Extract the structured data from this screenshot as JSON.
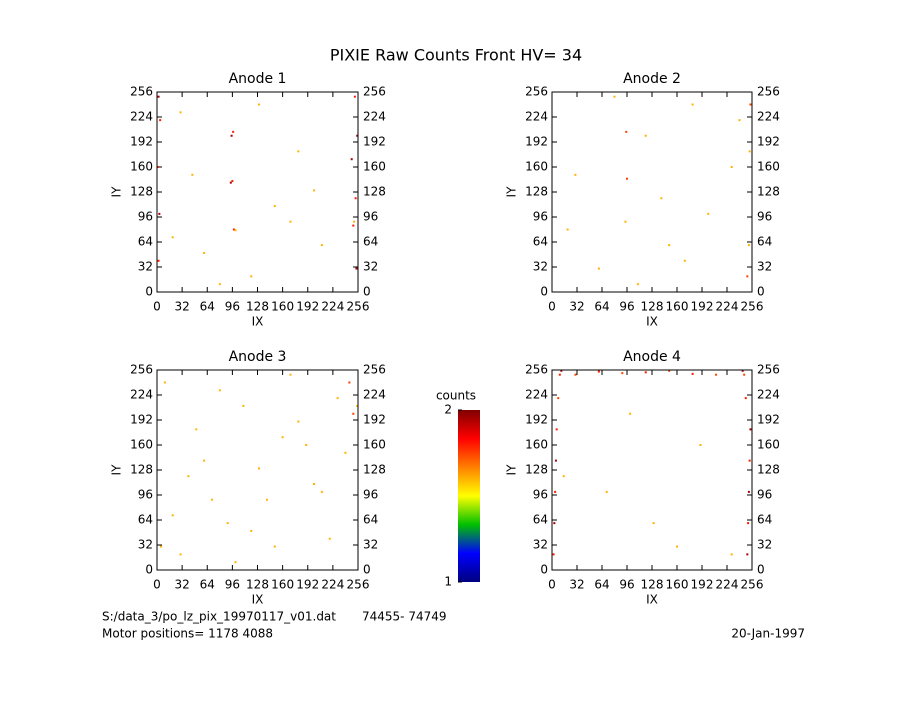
{
  "title": "PIXIE Raw Counts Front HV= 34",
  "colorbar": {
    "label": "counts",
    "clim": [
      1,
      2
    ],
    "ticks": [
      1,
      2
    ],
    "colors": [
      "#000080",
      "#0000ff",
      "#00c000",
      "#ffff00",
      "#ff8000",
      "#ff0000",
      "#800000"
    ]
  },
  "footer": {
    "file": "S:/data_3/po_lz_pix_19970117_v01.dat",
    "range": "74455- 74749",
    "motor": "Motor positions= 1178 4088",
    "date": "20-Jan-1997"
  },
  "chart_data": [
    {
      "type": "scatter",
      "title": "Anode 1",
      "x_label": "IX",
      "y_label": "IY",
      "xlim": [
        0,
        256
      ],
      "ylim": [
        0,
        256
      ],
      "xticks": [
        0,
        32,
        64,
        96,
        128,
        160,
        192,
        224,
        256
      ],
      "yticks": [
        0,
        32,
        64,
        96,
        128,
        160,
        192,
        224,
        256
      ],
      "x": [
        2,
        3,
        1,
        4,
        2,
        254,
        253,
        255,
        252,
        95,
        97,
        94,
        96,
        98,
        100,
        248,
        250,
        251,
        30,
        60,
        120,
        150,
        180,
        210,
        45,
        130,
        200,
        170,
        80,
        20
      ],
      "y": [
        40,
        100,
        160,
        220,
        250,
        30,
        120,
        200,
        250,
        200,
        205,
        140,
        142,
        80,
        79,
        170,
        85,
        90,
        230,
        50,
        20,
        110,
        180,
        60,
        150,
        240,
        130,
        90,
        10,
        70
      ],
      "values": [
        1.8,
        1.95,
        1.8,
        1.8,
        1.95,
        1.95,
        1.8,
        1.95,
        1.8,
        1.95,
        1.8,
        1.95,
        1.8,
        1.8,
        1.6,
        1.95,
        1.8,
        1.6,
        1.6,
        1.6,
        1.6,
        1.6,
        1.6,
        1.6,
        1.6,
        1.6,
        1.6,
        1.6,
        1.6,
        1.6
      ]
    },
    {
      "type": "scatter",
      "title": "Anode 2",
      "x_label": "IX",
      "y_label": "IY",
      "xlim": [
        0,
        256
      ],
      "ylim": [
        0,
        256
      ],
      "xticks": [
        0,
        32,
        64,
        96,
        128,
        160,
        192,
        224,
        256
      ],
      "yticks": [
        0,
        32,
        64,
        96,
        128,
        160,
        192,
        224,
        256
      ],
      "x": [
        95,
        96,
        94,
        250,
        252,
        253,
        254,
        60,
        120,
        200,
        30,
        150,
        180,
        230,
        80,
        110,
        140,
        20,
        170,
        240
      ],
      "y": [
        205,
        145,
        90,
        20,
        60,
        180,
        240,
        30,
        200,
        100,
        150,
        60,
        240,
        160,
        250,
        10,
        120,
        80,
        40,
        220
      ],
      "values": [
        1.75,
        1.75,
        1.6,
        1.75,
        1.6,
        1.6,
        1.75,
        1.6,
        1.6,
        1.6,
        1.6,
        1.6,
        1.6,
        1.6,
        1.6,
        1.6,
        1.6,
        1.6,
        1.6,
        1.6
      ]
    },
    {
      "type": "scatter",
      "title": "Anode 3",
      "x_label": "IX",
      "y_label": "IY",
      "xlim": [
        0,
        256
      ],
      "ylim": [
        0,
        256
      ],
      "xticks": [
        0,
        32,
        64,
        96,
        128,
        160,
        192,
        224,
        256
      ],
      "yticks": [
        0,
        32,
        64,
        96,
        128,
        160,
        192,
        224,
        256
      ],
      "x": [
        10,
        30,
        50,
        70,
        90,
        110,
        130,
        150,
        170,
        190,
        210,
        230,
        250,
        20,
        60,
        100,
        140,
        180,
        220,
        245,
        40,
        80,
        120,
        160,
        200,
        240,
        5,
        255
      ],
      "y": [
        240,
        20,
        180,
        90,
        60,
        210,
        130,
        30,
        250,
        160,
        100,
        220,
        200,
        70,
        140,
        10,
        90,
        190,
        40,
        240,
        120,
        230,
        50,
        170,
        110,
        150,
        30,
        210
      ],
      "values": [
        1.6,
        1.6,
        1.6,
        1.6,
        1.6,
        1.6,
        1.6,
        1.6,
        1.6,
        1.6,
        1.6,
        1.6,
        1.75,
        1.6,
        1.6,
        1.6,
        1.6,
        1.6,
        1.6,
        1.75,
        1.6,
        1.6,
        1.6,
        1.6,
        1.6,
        1.6,
        1.6,
        1.6
      ]
    },
    {
      "type": "scatter",
      "title": "Anode 4",
      "x_label": "IX",
      "y_label": "IY",
      "xlim": [
        0,
        256
      ],
      "ylim": [
        0,
        256
      ],
      "xticks": [
        0,
        32,
        64,
        96,
        128,
        160,
        192,
        224,
        256
      ],
      "yticks": [
        0,
        32,
        64,
        96,
        128,
        160,
        192,
        224,
        256
      ],
      "x": [
        2,
        3,
        4,
        5,
        6,
        8,
        10,
        12,
        250,
        251,
        252,
        253,
        254,
        248,
        246,
        244,
        30,
        60,
        90,
        120,
        150,
        180,
        210,
        230,
        70,
        130,
        190,
        100,
        160,
        15
      ],
      "y": [
        20,
        60,
        100,
        140,
        180,
        220,
        250,
        255,
        20,
        60,
        100,
        140,
        180,
        220,
        250,
        255,
        250,
        254,
        252,
        253,
        255,
        251,
        250,
        20,
        100,
        60,
        160,
        200,
        30,
        120
      ],
      "values": [
        1.8,
        1.95,
        1.8,
        1.95,
        1.8,
        1.75,
        1.8,
        1.95,
        1.95,
        1.8,
        1.95,
        1.8,
        1.95,
        1.8,
        1.75,
        1.95,
        1.75,
        1.8,
        1.75,
        1.8,
        1.75,
        1.8,
        1.75,
        1.6,
        1.6,
        1.6,
        1.6,
        1.6,
        1.6,
        1.6
      ]
    }
  ]
}
